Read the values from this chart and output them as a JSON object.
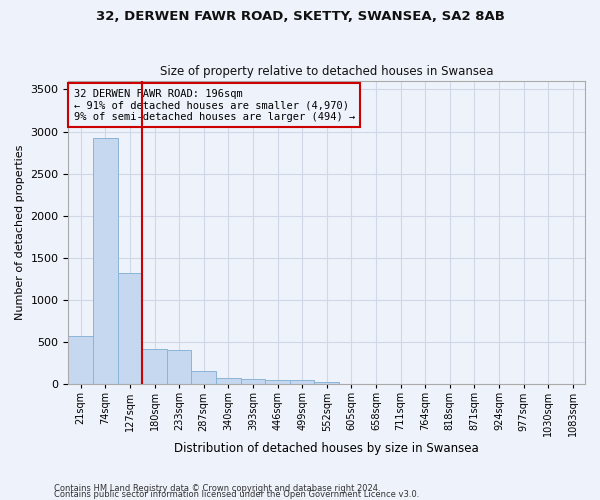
{
  "title_line1": "32, DERWEN FAWR ROAD, SKETTY, SWANSEA, SA2 8AB",
  "title_line2": "Size of property relative to detached houses in Swansea",
  "xlabel": "Distribution of detached houses by size in Swansea",
  "ylabel": "Number of detached properties",
  "annotation_line1": "32 DERWEN FAWR ROAD: 196sqm",
  "annotation_line2": "← 91% of detached houses are smaller (4,970)",
  "annotation_line3": "9% of semi-detached houses are larger (494) →",
  "footnote1": "Contains HM Land Registry data © Crown copyright and database right 2024.",
  "footnote2": "Contains public sector information licensed under the Open Government Licence v3.0.",
  "bar_color": "#c5d8f0",
  "bar_edge_color": "#8ab4d8",
  "grid_color": "#d0d8e8",
  "vline_color": "#cc0000",
  "annotation_box_color": "#cc0000",
  "background_color": "#eef2fa",
  "bin_labels": [
    "21sqm",
    "74sqm",
    "127sqm",
    "180sqm",
    "233sqm",
    "287sqm",
    "340sqm",
    "393sqm",
    "446sqm",
    "499sqm",
    "552sqm",
    "605sqm",
    "658sqm",
    "711sqm",
    "764sqm",
    "818sqm",
    "871sqm",
    "924sqm",
    "977sqm",
    "1030sqm",
    "1083sqm"
  ],
  "bar_heights": [
    570,
    2920,
    1320,
    420,
    410,
    155,
    80,
    60,
    55,
    50,
    30,
    0,
    0,
    0,
    0,
    0,
    0,
    0,
    0,
    0,
    0
  ],
  "vline_position": 3,
  "ylim": [
    0,
    3600
  ],
  "yticks": [
    0,
    500,
    1000,
    1500,
    2000,
    2500,
    3000,
    3500
  ]
}
